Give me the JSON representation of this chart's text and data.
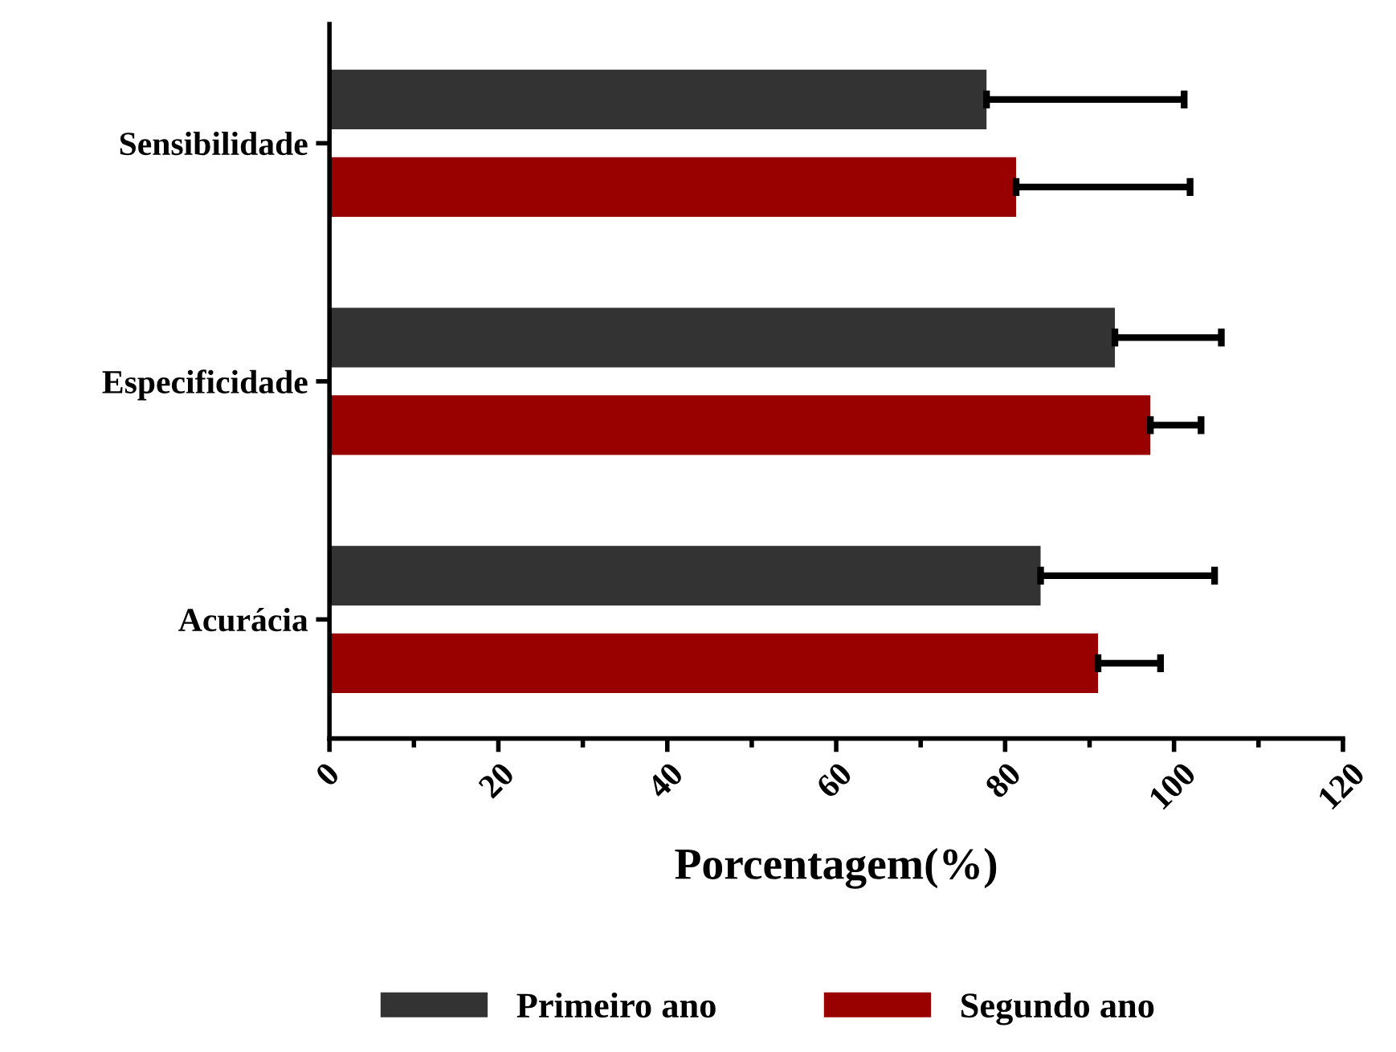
{
  "chart_data": {
    "type": "bar",
    "orientation": "horizontal",
    "xlabel": "Porcentagem(%)",
    "categories": [
      "Sensibilidade",
      "Especificidade",
      "Acurácia"
    ],
    "series": [
      {
        "name": "Primeiro ano",
        "color": "#333333",
        "values": [
          77.8,
          93.0,
          84.2
        ],
        "errors": [
          [
            77.8,
            101.2
          ],
          [
            93.0,
            105.6
          ],
          [
            84.2,
            104.8
          ]
        ]
      },
      {
        "name": "Segundo ano",
        "color": "#990000",
        "values": [
          81.3,
          97.2,
          91.0
        ],
        "errors": [
          [
            81.3,
            101.9
          ],
          [
            97.2,
            103.2
          ],
          [
            91.0,
            98.4
          ]
        ]
      }
    ],
    "xlim": [
      0,
      120
    ],
    "xticks": [
      0,
      20,
      40,
      60,
      80,
      100,
      120
    ],
    "grid": false,
    "legend": "bottom"
  }
}
